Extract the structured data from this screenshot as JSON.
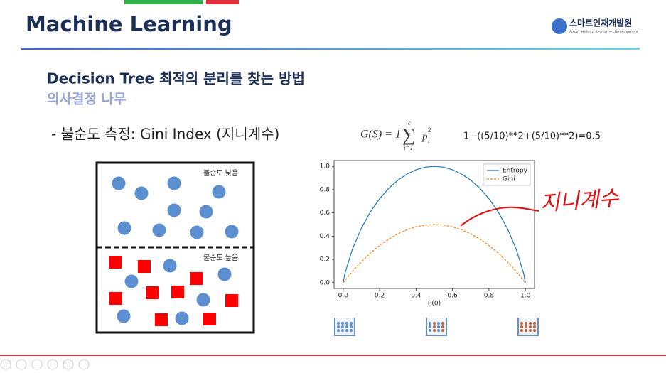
{
  "header": {
    "title": "Machine Learning",
    "logo_name": "스마트인재개발원",
    "logo_sub": "Smart Human Resources Development"
  },
  "slide": {
    "heading": "Decision Tree 최적의 분리를 찾는 방법",
    "subheading": "의사결정 나무",
    "bullet": "- 불순도 측정: Gini Index (지니계수)",
    "formula": {
      "lhs": "G(S) = 1 −",
      "sum_upper": "c",
      "sum_lower": "i=1",
      "sum": "∑",
      "term": "p",
      "sub": "i",
      "sup": "2"
    },
    "calculation": "1−((5/10)**2+(5/10)**2)=0.5",
    "box_low_label": "불순도 낮음",
    "box_high_label": "불순도 높음",
    "handwriting": "지니계수"
  },
  "chart_data": {
    "type": "line",
    "xlabel": "P(0)",
    "x": [
      0,
      0.01,
      0.05,
      0.1,
      0.15,
      0.2,
      0.25,
      0.3,
      0.35,
      0.4,
      0.45,
      0.5,
      0.55,
      0.6,
      0.65,
      0.7,
      0.75,
      0.8,
      0.85,
      0.9,
      0.95,
      0.99,
      1
    ],
    "series": [
      {
        "name": "Entropy",
        "color": "#1f77b4",
        "dash": false,
        "values": [
          0,
          0.081,
          0.286,
          0.469,
          0.61,
          0.722,
          0.811,
          0.881,
          0.934,
          0.971,
          0.993,
          1,
          0.993,
          0.971,
          0.934,
          0.881,
          0.811,
          0.722,
          0.61,
          0.469,
          0.286,
          0.081,
          0
        ]
      },
      {
        "name": "Gini",
        "color": "#ff7f0e",
        "dash": true,
        "values": [
          0,
          0.0198,
          0.095,
          0.18,
          0.255,
          0.32,
          0.375,
          0.42,
          0.455,
          0.48,
          0.495,
          0.5,
          0.495,
          0.48,
          0.455,
          0.42,
          0.375,
          0.32,
          0.255,
          0.18,
          0.095,
          0.0198,
          0
        ]
      }
    ],
    "xlim": [
      -0.05,
      1.05
    ],
    "ylim": [
      -0.05,
      1.05
    ],
    "xticks": [
      {
        "value": 0,
        "label": "0.0"
      },
      0.2,
      0.4,
      0.6,
      0.8,
      {
        "value": 1,
        "label": "1.0"
      }
    ],
    "yticks": [
      {
        "value": 0,
        "label": "0.0"
      },
      0.2,
      0.4,
      0.6,
      0.8,
      {
        "value": 1,
        "label": "1.0"
      }
    ],
    "legend": "upper right"
  }
}
